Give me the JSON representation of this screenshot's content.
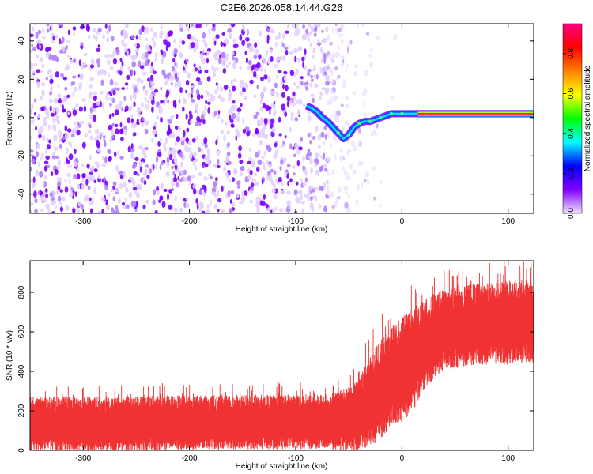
{
  "page": {
    "title": "C2E6.2026.058.14.44.G26"
  },
  "chart_data": [
    {
      "type": "heatmap",
      "title": "C2E6.2026.058.14.44.G26",
      "xlabel": "Height of straight line (km)",
      "ylabel": "Frequency (Hz)",
      "xlim": [
        -350,
        124
      ],
      "ylim": [
        -50,
        49
      ],
      "xticks": [
        -300,
        -200,
        -100,
        0,
        100
      ],
      "yticks": [
        -40,
        -20,
        0,
        20,
        40
      ],
      "trace": {
        "description": "dominant frequency track",
        "x": [
          -90,
          -85,
          -80,
          -75,
          -70,
          -65,
          -60,
          -55,
          -50,
          -45,
          -40,
          -35,
          -30,
          -25,
          -20,
          -15,
          -10,
          -5,
          0,
          10,
          20,
          30,
          40,
          60,
          80,
          100,
          124
        ],
        "y": [
          6,
          5,
          3,
          0,
          -2,
          -5,
          -8,
          -11,
          -9,
          -5,
          -3,
          -2,
          -2,
          -1,
          0,
          1,
          2,
          2,
          2,
          2,
          2,
          2,
          2,
          2,
          2,
          2,
          2
        ]
      },
      "colorbar": {
        "label": "Normalized spectral amplitude",
        "range": [
          0,
          0.95
        ],
        "ticks": [
          "0.0",
          "0.2",
          "0.4",
          "0.6",
          "0.8"
        ],
        "colors": [
          "#f0e0ff",
          "#8000ff",
          "#0000ff",
          "#00ffff",
          "#00ff00",
          "#ffff00",
          "#ff8000",
          "#ff0000",
          "#ff0080"
        ]
      }
    },
    {
      "type": "line",
      "xlabel": "Height of straight line (km)",
      "ylabel": "SNR (10 * v/v)",
      "xlim": [
        -350,
        124
      ],
      "ylim": [
        0,
        960
      ],
      "xticks": [
        -300,
        -200,
        -100,
        0,
        100
      ],
      "yticks": [
        0,
        200,
        400,
        600,
        800
      ],
      "color": "#f03232",
      "series": [
        {
          "name": "SNR",
          "x": [
            -350,
            -300,
            -250,
            -200,
            -150,
            -100,
            -80,
            -60,
            -50,
            -40,
            -30,
            -20,
            -10,
            0,
            10,
            20,
            30,
            40,
            60,
            80,
            100,
            124
          ],
          "y": [
            140,
            140,
            140,
            145,
            150,
            150,
            150,
            155,
            165,
            200,
            260,
            320,
            380,
            420,
            470,
            540,
            590,
            620,
            640,
            650,
            660,
            660
          ],
          "spread": [
            120,
            120,
            120,
            120,
            120,
            120,
            120,
            130,
            140,
            170,
            200,
            220,
            220,
            230,
            230,
            200,
            190,
            180,
            180,
            180,
            190,
            180
          ]
        }
      ]
    }
  ]
}
